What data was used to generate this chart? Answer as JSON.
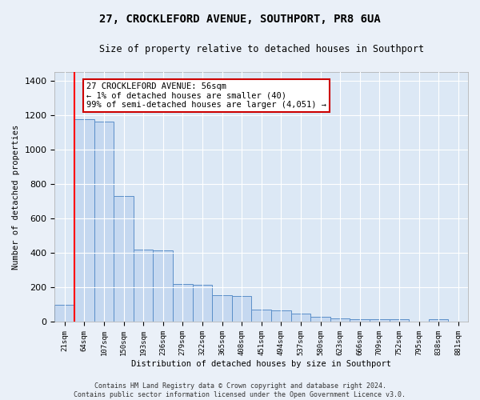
{
  "title": "27, CROCKLEFORD AVENUE, SOUTHPORT, PR8 6UA",
  "subtitle": "Size of property relative to detached houses in Southport",
  "xlabel": "Distribution of detached houses by size in Southport",
  "ylabel": "Number of detached properties",
  "categories": [
    "21sqm",
    "64sqm",
    "107sqm",
    "150sqm",
    "193sqm",
    "236sqm",
    "279sqm",
    "322sqm",
    "365sqm",
    "408sqm",
    "451sqm",
    "494sqm",
    "537sqm",
    "580sqm",
    "623sqm",
    "666sqm",
    "709sqm",
    "752sqm",
    "795sqm",
    "838sqm",
    "881sqm"
  ],
  "values": [
    100,
    1175,
    1160,
    730,
    420,
    415,
    220,
    215,
    155,
    150,
    70,
    65,
    50,
    30,
    20,
    18,
    15,
    15,
    0,
    15,
    0
  ],
  "bar_color": "#c5d8f0",
  "bar_edge_color": "#5b8fc9",
  "bg_color": "#dce8f5",
  "fig_bg_color": "#eaf0f8",
  "grid_color": "#ffffff",
  "red_line_x": 0.5,
  "annotation_text": "27 CROCKLEFORD AVENUE: 56sqm\n← 1% of detached houses are smaller (40)\n99% of semi-detached houses are larger (4,051) →",
  "annotation_box_facecolor": "#ffffff",
  "annotation_box_edgecolor": "#cc0000",
  "ylim_max": 1450,
  "yticks": [
    0,
    200,
    400,
    600,
    800,
    1000,
    1200,
    1400
  ],
  "footer": "Contains HM Land Registry data © Crown copyright and database right 2024.\nContains public sector information licensed under the Open Government Licence v3.0."
}
